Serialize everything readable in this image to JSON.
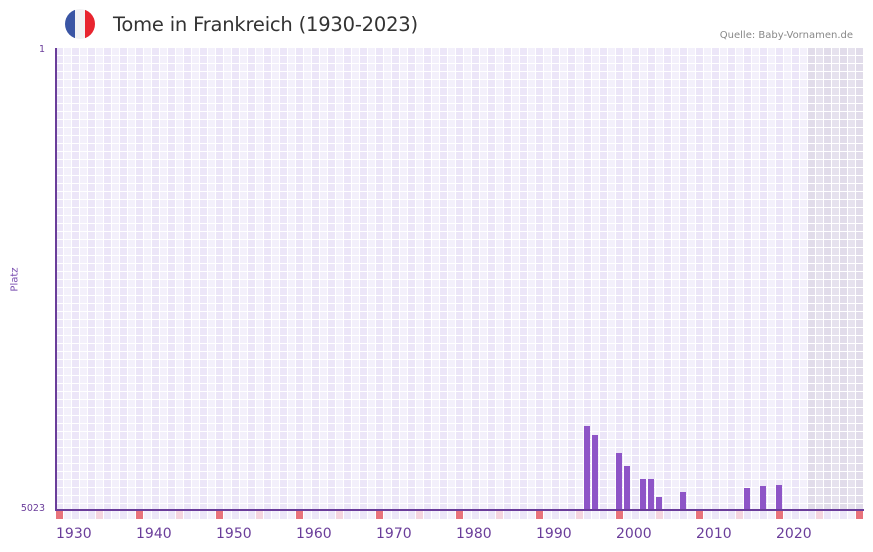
{
  "header": {
    "title": "Tome in Frankreich (1930-2023)",
    "source": "Quelle: Baby-Vornamen.de",
    "flag_icon": "france-flag-icon",
    "flag_colors": [
      "#3a55a4",
      "#f2f2f4",
      "#e8252f"
    ]
  },
  "colors": {
    "bar": "#8e55c7",
    "axis": "#6a3d9a",
    "cell_even": "#ece6f8",
    "cell_odd": "#f3f0fb",
    "cell_future_even": "#e1dcea",
    "cell_future_odd": "#e6e2ee",
    "marker_decade": "#e8737c",
    "marker_half": "#f5d5df",
    "marker_plain_even": "#ece6f8",
    "marker_plain_odd": "#f3f0fb"
  },
  "chart_data": {
    "type": "bar",
    "title": "Tome in Frankreich (1930-2023)",
    "xlabel": "",
    "ylabel": "Platz",
    "y_inverted": true,
    "ylim": [
      5023,
      1
    ],
    "yticks": [
      "1",
      "5023"
    ],
    "xlim": [
      1930,
      2030
    ],
    "xticks": [
      "1930",
      "1940",
      "1950",
      "1960",
      "1970",
      "1980",
      "1990",
      "2000",
      "2010",
      "2020"
    ],
    "grid": true,
    "legend": null,
    "shaded_future_from": 2024,
    "series": [
      {
        "name": "Platz",
        "x": [
          1996,
          1997,
          2000,
          2001,
          2003,
          2004,
          2005,
          2008,
          2016,
          2018,
          2020
        ],
        "values": [
          4117,
          4215,
          4412,
          4554,
          4695,
          4695,
          4892,
          4837,
          4794,
          4772,
          4761
        ]
      }
    ]
  }
}
